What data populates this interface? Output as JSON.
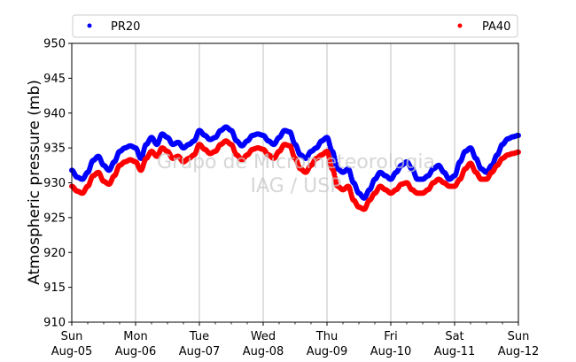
{
  "chart_data": {
    "type": "scatter",
    "ylabel": "Atmospheric pressure (mb)",
    "ylim": [
      910,
      950
    ],
    "yticks": [
      910,
      915,
      920,
      925,
      930,
      935,
      940,
      945,
      950
    ],
    "xlim": [
      0,
      168
    ],
    "xticks": [
      {
        "hour": 0,
        "day": "Sun",
        "date": "Aug-05"
      },
      {
        "hour": 24,
        "day": "Mon",
        "date": "Aug-06"
      },
      {
        "hour": 48,
        "day": "Tue",
        "date": "Aug-07"
      },
      {
        "hour": 72,
        "day": "Wed",
        "date": "Aug-08"
      },
      {
        "hour": 96,
        "day": "Thu",
        "date": "Aug-09"
      },
      {
        "hour": 120,
        "day": "Fri",
        "date": "Aug-10"
      },
      {
        "hour": 144,
        "day": "Sat",
        "date": "Aug-11"
      },
      {
        "hour": 168,
        "day": "Sun",
        "date": "Aug-12"
      }
    ],
    "grid": "vertical",
    "legend_position": "top",
    "watermark": [
      "Grupo de Micrometeorologia",
      "IAG / USP"
    ],
    "series": [
      {
        "name": "PR20",
        "color": "#0000ff",
        "x": [
          0,
          2,
          4,
          6,
          8,
          10,
          12,
          14,
          16,
          18,
          20,
          22,
          24,
          26,
          28,
          30,
          32,
          34,
          36,
          38,
          40,
          42,
          44,
          46,
          48,
          50,
          52,
          54,
          56,
          58,
          60,
          62,
          64,
          66,
          68,
          70,
          72,
          74,
          76,
          78,
          80,
          82,
          84,
          86,
          88,
          90,
          92,
          94,
          96,
          98,
          100,
          102,
          104,
          106,
          108,
          110,
          112,
          114,
          116,
          118,
          120,
          122,
          124,
          126,
          128,
          130,
          132,
          134,
          136,
          138,
          140,
          142,
          144,
          146,
          148,
          150,
          152,
          154,
          156,
          158,
          160,
          162,
          164,
          166,
          168
        ],
        "y": [
          931.8,
          930.8,
          930.5,
          931.5,
          933.2,
          933.8,
          932.5,
          931.8,
          933.0,
          934.5,
          935.0,
          935.3,
          935.0,
          933.5,
          935.5,
          936.5,
          935.5,
          937.0,
          936.5,
          935.5,
          935.8,
          935.0,
          935.5,
          936.0,
          937.5,
          936.8,
          936.2,
          936.5,
          937.5,
          938.0,
          937.5,
          936.0,
          935.3,
          936.0,
          936.8,
          937.0,
          936.8,
          936.0,
          935.5,
          936.5,
          937.5,
          937.3,
          935.5,
          934.0,
          933.5,
          934.5,
          935.0,
          936.0,
          936.5,
          934.5,
          932.0,
          931.5,
          932.0,
          930.0,
          928.5,
          927.8,
          929.0,
          930.5,
          931.5,
          931.0,
          930.5,
          931.5,
          932.5,
          933.0,
          932.0,
          930.5,
          930.5,
          931.0,
          932.0,
          932.5,
          931.5,
          930.5,
          931.0,
          933.0,
          934.5,
          935.0,
          933.5,
          932.0,
          931.5,
          932.5,
          934.0,
          935.5,
          936.3,
          936.6,
          936.8
        ]
      },
      {
        "name": "PA40",
        "color": "#ff0000",
        "x": [
          0,
          2,
          4,
          6,
          8,
          10,
          12,
          14,
          16,
          18,
          20,
          22,
          24,
          26,
          28,
          30,
          32,
          34,
          36,
          38,
          40,
          42,
          44,
          46,
          48,
          50,
          52,
          54,
          56,
          58,
          60,
          62,
          64,
          66,
          68,
          70,
          72,
          74,
          76,
          78,
          80,
          82,
          84,
          86,
          88,
          90,
          92,
          94,
          96,
          98,
          100,
          102,
          104,
          106,
          108,
          110,
          112,
          114,
          116,
          118,
          120,
          122,
          124,
          126,
          128,
          130,
          132,
          134,
          136,
          138,
          140,
          142,
          144,
          146,
          148,
          150,
          152,
          154,
          156,
          158,
          160,
          162,
          164,
          166,
          168
        ],
        "y": [
          929.5,
          928.8,
          928.5,
          929.5,
          931.0,
          931.5,
          930.2,
          929.8,
          931.0,
          932.5,
          933.0,
          933.3,
          933.0,
          931.8,
          933.5,
          934.5,
          933.8,
          935.0,
          934.5,
          933.5,
          933.8,
          933.0,
          933.5,
          934.0,
          935.5,
          934.8,
          934.2,
          934.5,
          935.5,
          936.0,
          935.5,
          934.0,
          933.3,
          934.0,
          934.8,
          935.0,
          934.8,
          934.0,
          933.5,
          934.5,
          935.5,
          935.3,
          933.5,
          932.0,
          931.5,
          932.5,
          933.5,
          934.0,
          934.5,
          932.0,
          929.5,
          929.0,
          929.5,
          927.5,
          926.5,
          926.2,
          927.5,
          928.5,
          929.5,
          929.0,
          928.5,
          929.0,
          929.8,
          930.0,
          929.0,
          928.5,
          928.5,
          929.0,
          930.0,
          930.5,
          930.0,
          929.5,
          929.5,
          930.5,
          932.0,
          932.8,
          931.5,
          930.5,
          930.5,
          931.5,
          932.5,
          933.5,
          934.0,
          934.2,
          934.4
        ]
      }
    ]
  }
}
